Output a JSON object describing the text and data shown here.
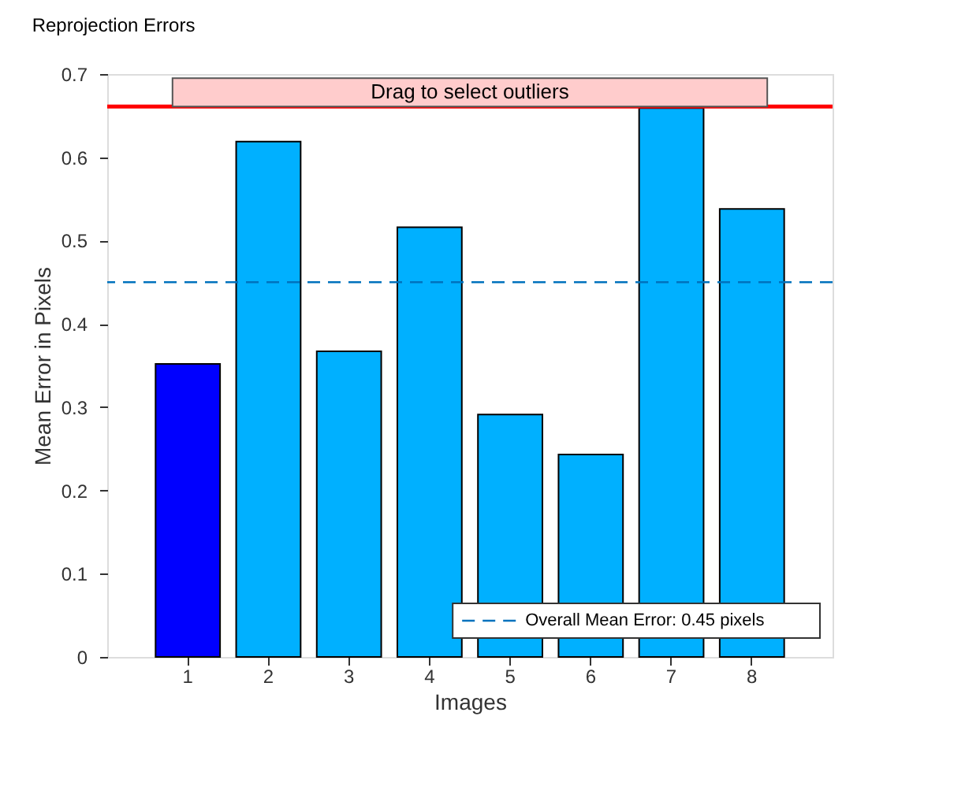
{
  "chart_data": {
    "type": "bar",
    "title": "Reprojection Errors",
    "xlabel": "Images",
    "ylabel": "Mean Error in Pixels",
    "categories": [
      "1",
      "2",
      "3",
      "4",
      "5",
      "6",
      "7",
      "8"
    ],
    "values": [
      0.352,
      0.619,
      0.367,
      0.516,
      0.291,
      0.243,
      0.659,
      0.538
    ],
    "colors": [
      "#0000ff",
      "#00b0ff",
      "#00b0ff",
      "#00b0ff",
      "#00b0ff",
      "#00b0ff",
      "#00b0ff",
      "#00b0ff"
    ],
    "ylim": [
      0,
      0.7
    ],
    "yticks": [
      0,
      0.1,
      0.2,
      0.3,
      0.4,
      0.5,
      0.6,
      0.7
    ],
    "ref_lines": [
      {
        "axis": "y",
        "value": 0.661,
        "color": "#ff0000",
        "line_style": "solid"
      },
      {
        "axis": "y",
        "value": 0.45,
        "label": "Overall Mean Error: 0.45 pixels",
        "color": "#0072bd",
        "line_style": "dashed"
      }
    ],
    "bands": [
      {
        "axis": "y",
        "from": 0.661,
        "to": 0.695,
        "label": "Drag to select outliers",
        "color": "#ffcccc"
      }
    ],
    "legend": "bottom right",
    "grid": false
  }
}
